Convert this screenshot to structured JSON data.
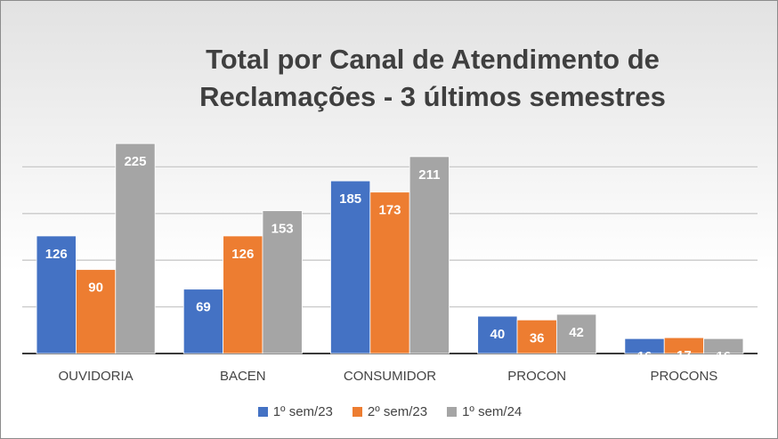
{
  "chart_data": {
    "type": "bar",
    "title_line1": "Total por Canal de Atendimento de",
    "title_line2": "Reclamações - 3 últimos semestres",
    "categories": [
      "OUVIDORIA",
      "BACEN",
      "CONSUMIDOR",
      "PROCON",
      "PROCONS"
    ],
    "series": [
      {
        "name": "1º sem/23",
        "color": "#4472c4",
        "values": [
          126,
          69,
          185,
          40,
          16
        ]
      },
      {
        "name": "2º sem/23",
        "color": "#ed7d31",
        "values": [
          90,
          126,
          173,
          36,
          17
        ]
      },
      {
        "name": "1º sem/24",
        "color": "#a5a5a5",
        "values": [
          225,
          153,
          211,
          42,
          16
        ]
      }
    ],
    "ylim": [
      0,
      250
    ],
    "grid": true,
    "legend_position": "bottom",
    "data_label_color": "#ffffff"
  }
}
